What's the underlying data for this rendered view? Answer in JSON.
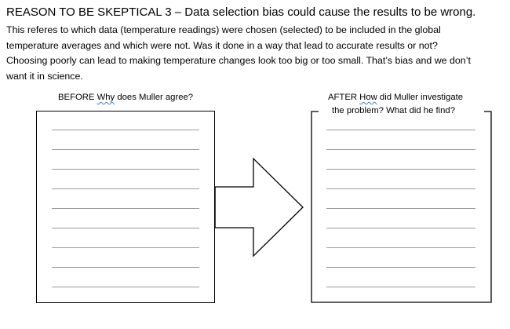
{
  "heading": "REASON TO BE SKEPTICAL 3 – Data selection bias could cause the results to be wrong.",
  "paragraph": [
    "This referes to which data (temperature readings) were chosen (selected) to be included in the global",
    "temperature averages and which were not.  Was it done in a way that lead to accurate results or not?",
    "Choosing poorly can lead to making temperature changes look too big or too small.  That’s bias and we don’t",
    "want it in science."
  ],
  "before": {
    "prefix": "BEFORE",
    "word": "Why",
    "rest": "does Muller agree?"
  },
  "after": {
    "prefix": "AFTER",
    "word": "How",
    "rest": "did Muller investigate",
    "line2": "the problem?  What did he find?"
  },
  "arrow": "arrow-right-icon",
  "colors": {
    "text": "#000000",
    "writing_line": "#9a9a9a",
    "spell_squiggle": "#4a7dc9"
  }
}
